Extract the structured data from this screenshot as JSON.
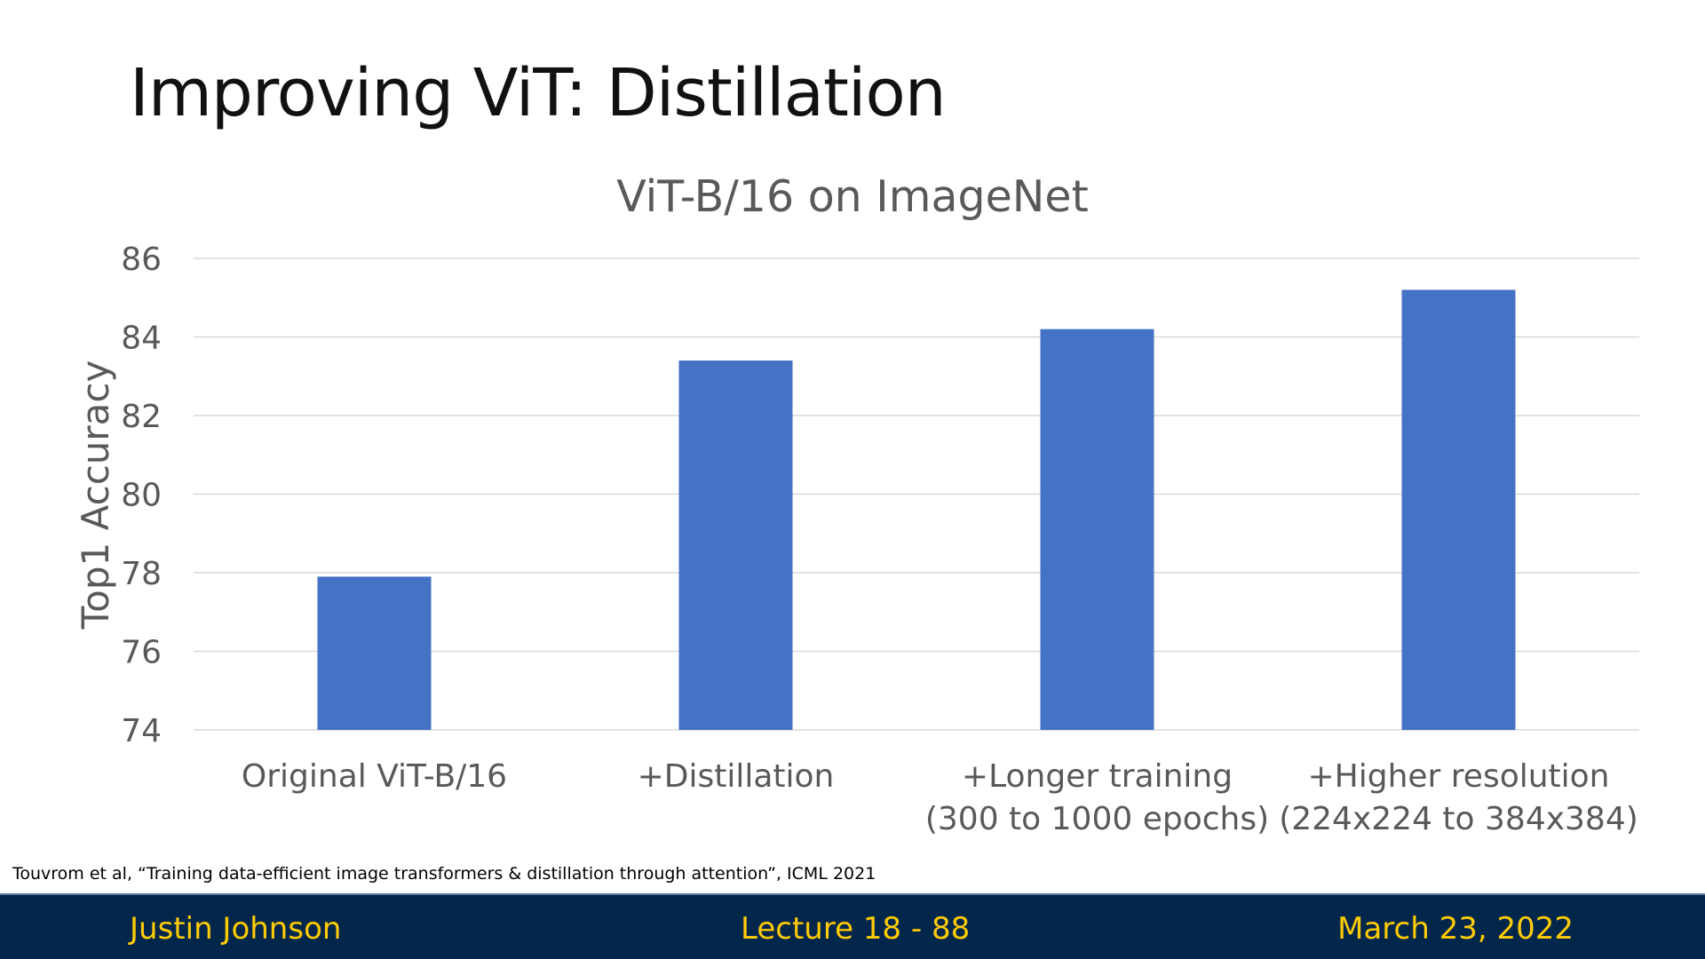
{
  "slide": {
    "title": "Improving ViT: Distillation",
    "citation": "Touvrom et al, “Training data-efficient image transformers & distillation through attention”, ICML 2021"
  },
  "footer": {
    "author": "Justin Johnson",
    "lecture": "Lecture 18 -  88",
    "date": "March 23, 2022",
    "background_color": "#03274b",
    "text_color": "#ffcb05"
  },
  "chart_data": {
    "type": "bar",
    "title": "ViT-B/16 on ImageNet",
    "xlabel": "",
    "ylabel": "Top1 Accuracy",
    "ylim": [
      74,
      86
    ],
    "yticks": [
      74,
      76,
      78,
      80,
      82,
      84,
      86
    ],
    "grid": true,
    "bar_color": "#4472c4",
    "categories": [
      [
        "Original ViT-B/16"
      ],
      [
        "+Distillation"
      ],
      [
        "+Longer training",
        "(300 to 1000 epochs)"
      ],
      [
        "+Higher resolution",
        "(224x224 to 384x384)"
      ]
    ],
    "values": [
      77.9,
      83.4,
      84.2,
      85.2
    ]
  }
}
